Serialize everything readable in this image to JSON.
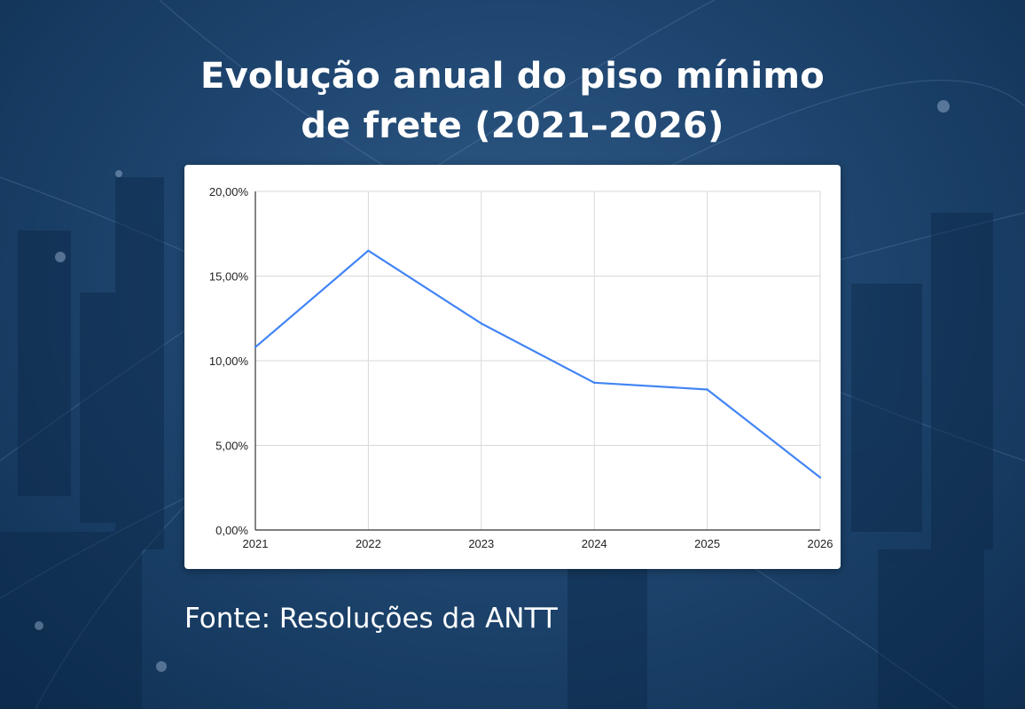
{
  "title": {
    "line1": "Evolução anual do piso mínimo",
    "line2": "de frete (2021–2026)"
  },
  "source": "Fonte: Resoluções da ANTT",
  "colors": {
    "line": "#4285f4",
    "grid": "#d9d9d9",
    "axis": "#333333",
    "background": "#1f4670"
  },
  "chart_data": {
    "type": "line",
    "x": [
      "2021",
      "2022",
      "2023",
      "2024",
      "2025",
      "2026"
    ],
    "series": [
      {
        "values": [
          10.8,
          16.5,
          12.2,
          8.7,
          8.3,
          3.1
        ]
      }
    ],
    "ylim": [
      0,
      20
    ],
    "yticks": [
      0,
      5,
      10,
      15,
      20
    ],
    "ytick_labels": [
      "0,00%",
      "5,00%",
      "10,00%",
      "15,00%",
      "20,00%"
    ],
    "grid": true
  }
}
